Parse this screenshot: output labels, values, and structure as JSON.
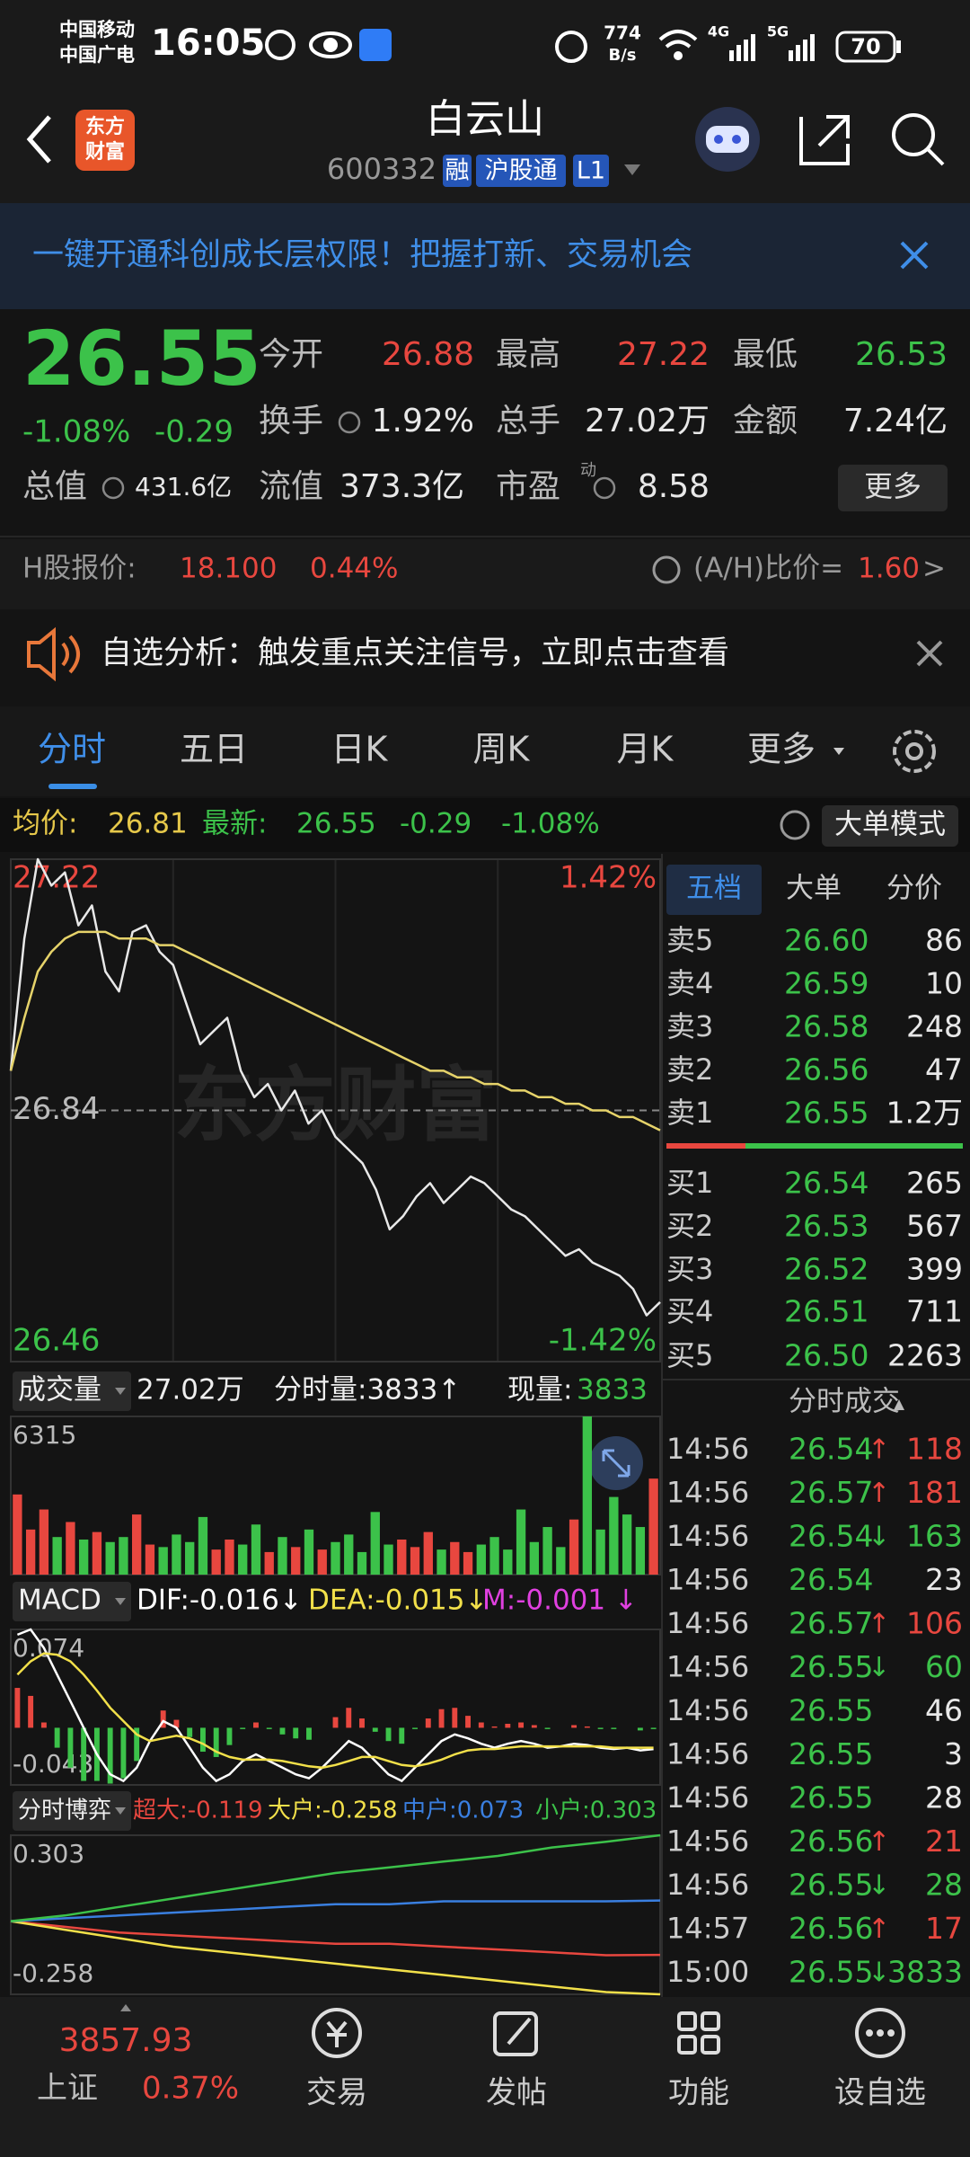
{
  "status_bar": {
    "carrier_1": "中国移动",
    "carrier_2": "中国广电",
    "time": "16:05",
    "net_speed": "774",
    "net_speed_unit": "B/s",
    "network_1": "4G",
    "network_2": "5G",
    "battery": "70"
  },
  "header": {
    "logo_1": "东方",
    "logo_2": "财富",
    "title": "白云山",
    "code": "600332",
    "tags": [
      "融",
      "沪股通",
      "L1"
    ]
  },
  "banner": {
    "text": "一键开通科创成长层权限！把握打新、交易机会"
  },
  "quote": {
    "price": "26.55",
    "change_pct": "-1.08%",
    "change": "-0.29",
    "fields": [
      {
        "label": "今开",
        "value": "26.88"
      },
      {
        "label": "最高",
        "value": "27.22"
      },
      {
        "label": "最低",
        "value": "26.53"
      },
      {
        "label": "换手",
        "value": "1.92%"
      },
      {
        "label": "总手",
        "value": "27.02万"
      },
      {
        "label": "金额",
        "value": "7.24亿"
      },
      {
        "label": "总值",
        "value": "431.6亿"
      },
      {
        "label": "流值",
        "value": "373.3亿"
      },
      {
        "label": "市盈",
        "sup": "动",
        "value": "8.58"
      }
    ],
    "more": "更多"
  },
  "h_share": {
    "label": "H股报价:",
    "price": "18.100",
    "change_pct": "0.44%",
    "ratio_label": "(A/H)比价=",
    "ratio": "1.60",
    "arrow": ">"
  },
  "alert": {
    "text": "自选分析：触发重点关注信号，立即点击查看"
  },
  "tabs": [
    "分时",
    "五日",
    "日K",
    "周K",
    "月K",
    "更多"
  ],
  "summary": {
    "avg_label": "均价:",
    "avg": "26.81",
    "latest_label": "最新:",
    "latest": "26.55",
    "change": "-0.29",
    "change_pct": "-1.08%",
    "mode": "大单模式"
  },
  "chart_data": [
    {
      "type": "line",
      "watermark": "东方财富",
      "ylim": [
        26.46,
        27.22
      ],
      "yticks": [
        27.22,
        26.84,
        26.46
      ],
      "y2lim": [
        -1.42,
        1.42
      ],
      "y2ticks": [
        {
          "value": 1.42,
          "label": "1.42%"
        },
        {
          "value": -1.42,
          "label": "-1.42%"
        }
      ],
      "series": [
        {
          "color": "#e8e8e8",
          "values": [
            26.9,
            27.1,
            27.22,
            27.18,
            27.2,
            27.12,
            27.15,
            27.05,
            27.02,
            27.11,
            27.12,
            27.08,
            27.06,
            27.0,
            26.94,
            26.96,
            26.98,
            26.9,
            26.86,
            26.88,
            26.84,
            26.87,
            26.82,
            26.84,
            26.8,
            26.78,
            26.76,
            26.72,
            26.66,
            26.68,
            26.71,
            26.73,
            26.7,
            26.72,
            26.74,
            26.73,
            26.71,
            26.69,
            26.68,
            26.66,
            26.64,
            26.62,
            26.63,
            26.61,
            26.6,
            26.59,
            26.57,
            26.53,
            26.55
          ]
        },
        {
          "color": "#e6d36a",
          "values": [
            26.9,
            26.98,
            27.05,
            27.08,
            27.1,
            27.11,
            27.11,
            27.11,
            27.1,
            27.1,
            27.1,
            27.09,
            27.09,
            27.08,
            27.07,
            27.06,
            27.05,
            27.04,
            27.03,
            27.02,
            27.01,
            27.0,
            26.99,
            26.98,
            26.97,
            26.96,
            26.95,
            26.94,
            26.93,
            26.92,
            26.91,
            26.9,
            26.9,
            26.89,
            26.89,
            26.88,
            26.88,
            26.87,
            26.87,
            26.86,
            26.86,
            26.85,
            26.85,
            26.84,
            26.84,
            26.83,
            26.83,
            26.82,
            26.81
          ]
        }
      ]
    },
    {
      "type": "bar",
      "title": "成交量",
      "total": "27.02万",
      "period_volume": "分时量:3833↑",
      "current_label": "现量:",
      "current": "3833",
      "ylim": [
        0,
        6315
      ],
      "yticks": [
        6315
      ],
      "up_color": "#e8473f",
      "down_color": "#3cc24a",
      "values": [
        3200,
        1800,
        2600,
        1500,
        2100,
        1400,
        1700,
        1300,
        1500,
        2400,
        1200,
        1100,
        1600,
        1300,
        2300,
        1000,
        1400,
        1200,
        2000,
        900,
        1500,
        1100,
        1800,
        1000,
        1300,
        1600,
        900,
        2500,
        1200,
        1400,
        1100,
        1700,
        1000,
        1300,
        900,
        1200,
        1500,
        1000,
        2600,
        1300,
        1900,
        1100,
        2200,
        6315,
        1800,
        3100,
        2400,
        1900,
        3833
      ]
    },
    {
      "type": "macd",
      "title": "MACD",
      "ylim": [
        -0.043,
        0.074
      ],
      "yticks": [
        0.074,
        -0.043
      ],
      "up_color": "#e8473f",
      "down_color": "#3cc24a",
      "series": [
        {
          "legend": "DIF:-0.016↓",
          "color": "#ffffff",
          "values": [
            0.07,
            0.074,
            0.06,
            0.04,
            0.02,
            0.0,
            -0.02,
            -0.035,
            -0.04,
            -0.03,
            -0.01,
            0.005,
            0.0,
            -0.015,
            -0.03,
            -0.04,
            -0.035,
            -0.025,
            -0.02,
            -0.025,
            -0.03,
            -0.035,
            -0.038,
            -0.03,
            -0.02,
            -0.01,
            -0.015,
            -0.025,
            -0.035,
            -0.04,
            -0.03,
            -0.02,
            -0.01,
            -0.005,
            -0.008,
            -0.012,
            -0.015,
            -0.012,
            -0.01,
            -0.012,
            -0.015,
            -0.014,
            -0.012,
            -0.013,
            -0.015,
            -0.016,
            -0.015,
            -0.017,
            -0.016
          ]
        },
        {
          "legend": "DEA:-0.015↓",
          "color": "#f2e04a",
          "values": [
            0.04,
            0.05,
            0.056,
            0.055,
            0.05,
            0.04,
            0.028,
            0.015,
            0.005,
            -0.005,
            -0.01,
            -0.008,
            -0.006,
            -0.008,
            -0.012,
            -0.018,
            -0.022,
            -0.024,
            -0.024,
            -0.024,
            -0.025,
            -0.027,
            -0.029,
            -0.03,
            -0.028,
            -0.025,
            -0.022,
            -0.022,
            -0.025,
            -0.028,
            -0.029,
            -0.027,
            -0.024,
            -0.02,
            -0.017,
            -0.016,
            -0.016,
            -0.015,
            -0.014,
            -0.014,
            -0.014,
            -0.014,
            -0.014,
            -0.014,
            -0.014,
            -0.015,
            -0.015,
            -0.015,
            -0.015
          ]
        },
        {
          "legend": "M:-0.001 ↓",
          "color": "#e040e0",
          "values": [
            0.03,
            0.024,
            0.004,
            -0.015,
            -0.03,
            -0.04,
            -0.04,
            -0.042,
            -0.038,
            -0.025,
            0.0,
            0.013,
            0.006,
            -0.007,
            -0.018,
            -0.022,
            -0.013,
            -0.001,
            0.004,
            -0.001,
            -0.005,
            -0.008,
            -0.009,
            0.0,
            0.008,
            0.015,
            0.007,
            -0.003,
            -0.01,
            -0.012,
            -0.001,
            0.007,
            0.014,
            0.015,
            0.009,
            0.004,
            0.001,
            0.003,
            0.004,
            0.002,
            -0.001,
            0.0,
            0.002,
            0.001,
            -0.001,
            -0.001,
            0.0,
            -0.002,
            -0.001
          ]
        }
      ]
    },
    {
      "type": "line",
      "title": "分时博弈",
      "ylim": [
        -0.258,
        0.303
      ],
      "yticks": [
        0.303,
        -0.258
      ],
      "series": [
        {
          "legend": "超大:-0.119",
          "color": "#e8473f",
          "values": [
            0,
            -0.02,
            -0.04,
            -0.05,
            -0.06,
            -0.07,
            -0.08,
            -0.08,
            -0.09,
            -0.1,
            -0.11,
            -0.12,
            -0.119
          ]
        },
        {
          "legend": "大户:-0.258",
          "color": "#f2e04a",
          "values": [
            0,
            -0.03,
            -0.06,
            -0.09,
            -0.11,
            -0.13,
            -0.15,
            -0.17,
            -0.19,
            -0.21,
            -0.23,
            -0.25,
            -0.258
          ]
        },
        {
          "legend": "中户:0.073",
          "color": "#3a7fe0",
          "values": [
            0,
            0.01,
            0.02,
            0.03,
            0.04,
            0.05,
            0.06,
            0.06,
            0.07,
            0.07,
            0.07,
            0.07,
            0.073
          ]
        },
        {
          "legend": "小户:0.303",
          "color": "#3cc24a",
          "values": [
            0,
            0.02,
            0.05,
            0.08,
            0.11,
            0.14,
            0.17,
            0.19,
            0.21,
            0.23,
            0.26,
            0.28,
            0.303
          ]
        }
      ]
    }
  ],
  "order_book": {
    "tabs": [
      "五档",
      "大单",
      "分价"
    ],
    "asks": [
      {
        "label": "卖5",
        "price": "26.60",
        "volume": "86"
      },
      {
        "label": "卖4",
        "price": "26.59",
        "volume": "10"
      },
      {
        "label": "卖3",
        "price": "26.58",
        "volume": "248"
      },
      {
        "label": "卖2",
        "price": "26.56",
        "volume": "47"
      },
      {
        "label": "卖1",
        "price": "26.55",
        "volume": "1.2万"
      }
    ],
    "bids": [
      {
        "label": "买1",
        "price": "26.54",
        "volume": "265"
      },
      {
        "label": "买2",
        "price": "26.53",
        "volume": "567"
      },
      {
        "label": "买3",
        "price": "26.52",
        "volume": "399"
      },
      {
        "label": "买4",
        "price": "26.51",
        "volume": "711"
      },
      {
        "label": "买5",
        "price": "26.50",
        "volume": "2263"
      }
    ]
  },
  "trades": {
    "title": "分时成交",
    "rows": [
      {
        "time": "14:56",
        "price": "26.54",
        "dir": "↑",
        "volume": "118"
      },
      {
        "time": "14:56",
        "price": "26.57",
        "dir": "↑",
        "volume": "181"
      },
      {
        "time": "14:56",
        "price": "26.54",
        "dir": "↓",
        "volume": "163"
      },
      {
        "time": "14:56",
        "price": "26.54",
        "volume": "23"
      },
      {
        "time": "14:56",
        "price": "26.57",
        "dir": "↑",
        "volume": "106"
      },
      {
        "time": "14:56",
        "price": "26.55",
        "dir": "↓",
        "volume": "60"
      },
      {
        "time": "14:56",
        "price": "26.55",
        "volume": "46"
      },
      {
        "time": "14:56",
        "price": "26.55",
        "volume": "3"
      },
      {
        "time": "14:56",
        "price": "26.55",
        "volume": "28"
      },
      {
        "time": "14:56",
        "price": "26.56",
        "dir": "↑",
        "volume": "21"
      },
      {
        "time": "14:56",
        "price": "26.55",
        "dir": "↓",
        "volume": "28"
      },
      {
        "time": "14:57",
        "price": "26.56",
        "dir": "↑",
        "volume": "17"
      },
      {
        "time": "15:00",
        "price": "26.55",
        "dir": "↓",
        "volume": "3833"
      }
    ]
  },
  "nav": {
    "index_value": "3857.93",
    "index_name": "上证",
    "index_change": "0.37%",
    "items": [
      "交易",
      "发帖",
      "功能",
      "设自选"
    ]
  }
}
